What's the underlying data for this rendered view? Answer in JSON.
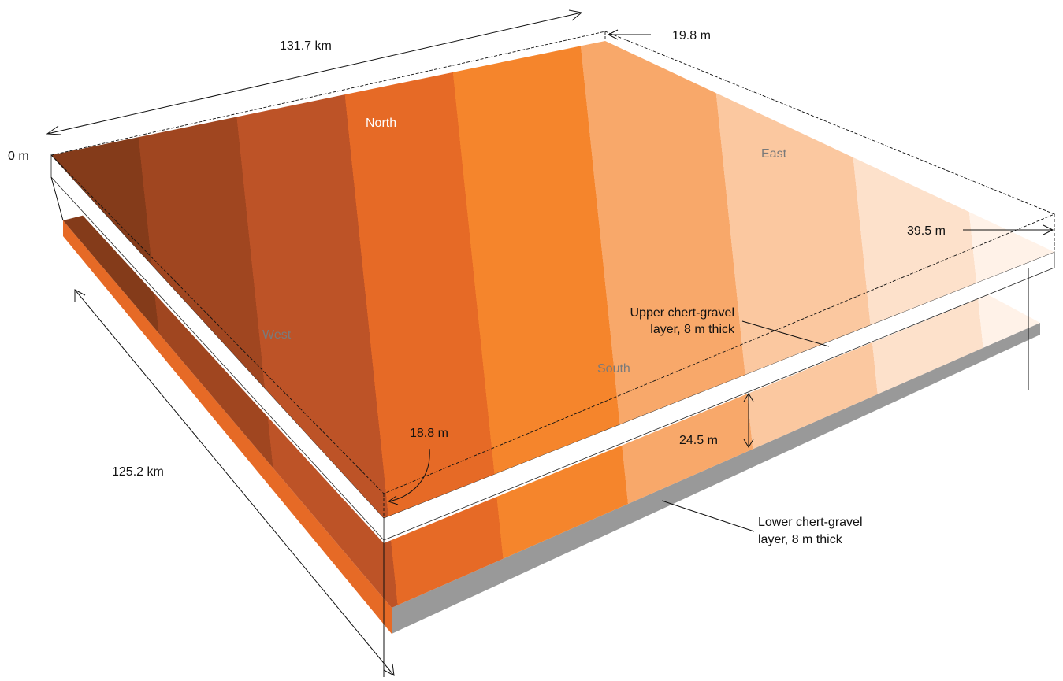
{
  "dimensions": {
    "length_ew": "131.7 km",
    "length_ns": "125.2 km",
    "elev_west_corner": "0 m",
    "elev_north_corner": "19.8 m",
    "elev_east_corner": "39.5 m",
    "elev_south_corner": "18.8 m",
    "layer_separation": "24.5 m"
  },
  "directions": {
    "north": "North",
    "east": "East",
    "south": "South",
    "west": "West"
  },
  "layers": {
    "upper_line1": "Upper chert-gravel",
    "upper_line2": "layer, 8 m thick",
    "lower_line1": "Lower chert-gravel",
    "lower_line2": "layer, 8 m thick"
  },
  "colors": {
    "band1": "#843b1a",
    "band2": "#a04620",
    "band3": "#bd5327",
    "band4": "#e66a26",
    "band5": "#f5852c",
    "band6": "#f8a86a",
    "band7": "#fbc8a0",
    "band8": "#fde1cb",
    "band9": "#fff2e8",
    "lower_side": "#999999"
  }
}
